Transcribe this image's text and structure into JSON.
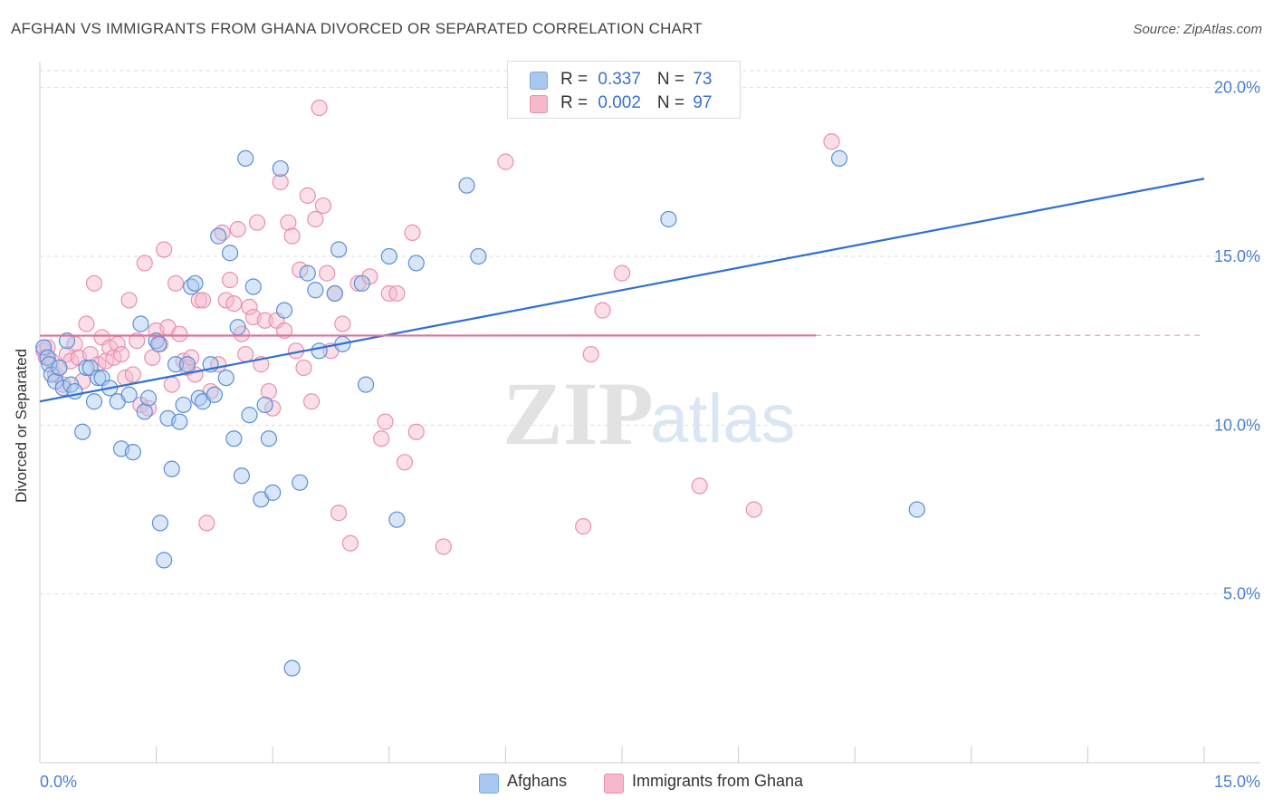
{
  "title": "AFGHAN VS IMMIGRANTS FROM GHANA DIVORCED OR SEPARATED CORRELATION CHART",
  "source": "Source: ZipAtlas.com",
  "watermark": {
    "zip": "ZIP",
    "atlas": "atlas"
  },
  "legend": {
    "rows": [
      {
        "r_label": "R = ",
        "r_value": "0.337",
        "n_label": "N = ",
        "n_value": "73",
        "color": "#a9c8f0"
      },
      {
        "r_label": "R = ",
        "r_value": "0.002",
        "n_label": "N = ",
        "n_value": "97",
        "color": "#f6b8cb"
      }
    ]
  },
  "bottom_legend": [
    "Afghans",
    "Immigrants from Ghana"
  ],
  "chart_data": {
    "type": "scatter",
    "title": "AFGHAN VS IMMIGRANTS FROM GHANA DIVORCED OR SEPARATED CORRELATION CHART",
    "xlabel": "",
    "ylabel": "Divorced or Separated",
    "xlim": [
      0,
      15
    ],
    "ylim": [
      0,
      20.5
    ],
    "x_tick_labels": [
      "0.0%",
      "15.0%"
    ],
    "y_ticks": [
      5,
      10,
      15,
      20
    ],
    "y_tick_labels": [
      "5.0%",
      "10.0%",
      "15.0%",
      "20.0%"
    ],
    "grid": true,
    "legend_position": "top-center",
    "series": [
      {
        "name": "Afghans",
        "color": "#5b8fd6",
        "fill": "#a9c8f0",
        "trend": {
          "x": [
            0,
            15
          ],
          "y": [
            10.7,
            17.3
          ],
          "color": "#2f6fd0"
        },
        "points": [
          [
            0.05,
            12.3
          ],
          [
            0.1,
            12.0
          ],
          [
            0.12,
            11.8
          ],
          [
            0.15,
            11.5
          ],
          [
            0.2,
            11.3
          ],
          [
            0.25,
            11.7
          ],
          [
            0.3,
            11.1
          ],
          [
            0.35,
            12.5
          ],
          [
            0.4,
            11.2
          ],
          [
            0.45,
            11.0
          ],
          [
            0.55,
            9.8
          ],
          [
            0.6,
            11.7
          ],
          [
            0.65,
            11.7
          ],
          [
            0.7,
            10.7
          ],
          [
            0.75,
            11.4
          ],
          [
            0.8,
            11.4
          ],
          [
            0.9,
            11.1
          ],
          [
            1.0,
            10.7
          ],
          [
            1.05,
            9.3
          ],
          [
            1.2,
            9.2
          ],
          [
            1.15,
            10.9
          ],
          [
            1.3,
            13.0
          ],
          [
            1.35,
            10.4
          ],
          [
            1.4,
            10.8
          ],
          [
            1.5,
            12.5
          ],
          [
            1.53,
            12.4
          ],
          [
            1.55,
            7.1
          ],
          [
            1.6,
            6.0
          ],
          [
            1.65,
            10.2
          ],
          [
            1.7,
            8.7
          ],
          [
            1.75,
            11.8
          ],
          [
            1.8,
            10.1
          ],
          [
            1.85,
            10.6
          ],
          [
            1.9,
            11.8
          ],
          [
            1.95,
            14.1
          ],
          [
            2.0,
            14.2
          ],
          [
            2.05,
            10.8
          ],
          [
            2.1,
            10.7
          ],
          [
            2.2,
            11.8
          ],
          [
            2.25,
            10.9
          ],
          [
            2.3,
            15.6
          ],
          [
            2.4,
            11.4
          ],
          [
            2.45,
            15.1
          ],
          [
            2.5,
            9.6
          ],
          [
            2.55,
            12.9
          ],
          [
            2.6,
            8.5
          ],
          [
            2.65,
            17.9
          ],
          [
            2.7,
            10.3
          ],
          [
            2.75,
            14.1
          ],
          [
            2.85,
            7.8
          ],
          [
            2.9,
            10.6
          ],
          [
            2.95,
            9.6
          ],
          [
            3.0,
            8.0
          ],
          [
            3.1,
            17.6
          ],
          [
            3.15,
            13.4
          ],
          [
            3.25,
            2.8
          ],
          [
            3.35,
            8.3
          ],
          [
            3.45,
            14.5
          ],
          [
            3.55,
            14.0
          ],
          [
            3.6,
            12.2
          ],
          [
            3.8,
            13.9
          ],
          [
            3.85,
            15.2
          ],
          [
            3.9,
            12.4
          ],
          [
            4.15,
            14.2
          ],
          [
            4.2,
            11.2
          ],
          [
            4.5,
            15.0
          ],
          [
            4.6,
            7.2
          ],
          [
            4.85,
            14.8
          ],
          [
            5.5,
            17.1
          ],
          [
            5.65,
            15.0
          ],
          [
            8.1,
            16.1
          ],
          [
            8.9,
            19.6
          ],
          [
            10.3,
            17.9
          ],
          [
            11.3,
            7.5
          ]
        ]
      },
      {
        "name": "Immigrants from Ghana",
        "color": "#e890ad",
        "fill": "#f6b8cb",
        "trend": {
          "x": [
            0,
            15
          ],
          "y": [
            12.65,
            12.66
          ],
          "solid_until": 10.0,
          "color": "#e0709a"
        },
        "points": [
          [
            0.05,
            12.2
          ],
          [
            0.08,
            12.0
          ],
          [
            0.1,
            12.3
          ],
          [
            0.15,
            11.9
          ],
          [
            0.2,
            11.5
          ],
          [
            0.25,
            11.7
          ],
          [
            0.3,
            11.2
          ],
          [
            0.35,
            12.1
          ],
          [
            0.4,
            11.9
          ],
          [
            0.45,
            12.4
          ],
          [
            0.5,
            12.0
          ],
          [
            0.55,
            11.3
          ],
          [
            0.6,
            13.0
          ],
          [
            0.65,
            12.1
          ],
          [
            0.7,
            14.2
          ],
          [
            0.75,
            11.8
          ],
          [
            0.8,
            12.6
          ],
          [
            0.85,
            11.9
          ],
          [
            0.9,
            12.3
          ],
          [
            0.95,
            12.0
          ],
          [
            1.0,
            12.4
          ],
          [
            1.05,
            12.1
          ],
          [
            1.1,
            11.4
          ],
          [
            1.15,
            13.7
          ],
          [
            1.2,
            11.5
          ],
          [
            1.25,
            12.5
          ],
          [
            1.3,
            10.6
          ],
          [
            1.35,
            14.8
          ],
          [
            1.4,
            10.5
          ],
          [
            1.45,
            12.0
          ],
          [
            1.5,
            12.8
          ],
          [
            1.55,
            12.4
          ],
          [
            1.6,
            15.2
          ],
          [
            1.65,
            12.9
          ],
          [
            1.7,
            11.2
          ],
          [
            1.75,
            14.2
          ],
          [
            1.8,
            12.7
          ],
          [
            1.85,
            11.9
          ],
          [
            1.9,
            11.7
          ],
          [
            1.95,
            12.0
          ],
          [
            2.0,
            11.5
          ],
          [
            2.05,
            13.7
          ],
          [
            2.1,
            13.7
          ],
          [
            2.15,
            7.1
          ],
          [
            2.2,
            11.0
          ],
          [
            2.3,
            11.8
          ],
          [
            2.35,
            15.7
          ],
          [
            2.4,
            13.7
          ],
          [
            2.45,
            14.3
          ],
          [
            2.5,
            13.6
          ],
          [
            2.55,
            15.8
          ],
          [
            2.6,
            12.7
          ],
          [
            2.65,
            12.1
          ],
          [
            2.7,
            13.5
          ],
          [
            2.75,
            13.2
          ],
          [
            2.8,
            16.0
          ],
          [
            2.85,
            11.8
          ],
          [
            2.9,
            13.1
          ],
          [
            2.95,
            11.0
          ],
          [
            3.0,
            10.5
          ],
          [
            3.05,
            13.1
          ],
          [
            3.1,
            17.2
          ],
          [
            3.15,
            12.8
          ],
          [
            3.2,
            16.0
          ],
          [
            3.25,
            15.6
          ],
          [
            3.3,
            12.2
          ],
          [
            3.35,
            14.6
          ],
          [
            3.4,
            11.7
          ],
          [
            3.45,
            16.8
          ],
          [
            3.5,
            10.7
          ],
          [
            3.55,
            16.1
          ],
          [
            3.6,
            19.4
          ],
          [
            3.65,
            16.5
          ],
          [
            3.7,
            14.5
          ],
          [
            3.75,
            12.2
          ],
          [
            3.8,
            13.9
          ],
          [
            3.85,
            7.4
          ],
          [
            3.9,
            13.0
          ],
          [
            4.0,
            6.5
          ],
          [
            4.1,
            14.2
          ],
          [
            4.25,
            14.4
          ],
          [
            4.4,
            9.6
          ],
          [
            4.45,
            10.1
          ],
          [
            4.5,
            13.9
          ],
          [
            4.6,
            13.9
          ],
          [
            4.7,
            8.9
          ],
          [
            4.8,
            15.7
          ],
          [
            4.85,
            9.8
          ],
          [
            5.2,
            6.4
          ],
          [
            6.0,
            17.8
          ],
          [
            7.0,
            7.0
          ],
          [
            7.1,
            12.1
          ],
          [
            7.25,
            13.4
          ],
          [
            7.5,
            14.5
          ],
          [
            8.5,
            8.2
          ],
          [
            9.2,
            7.5
          ],
          [
            10.2,
            18.4
          ]
        ]
      }
    ]
  }
}
